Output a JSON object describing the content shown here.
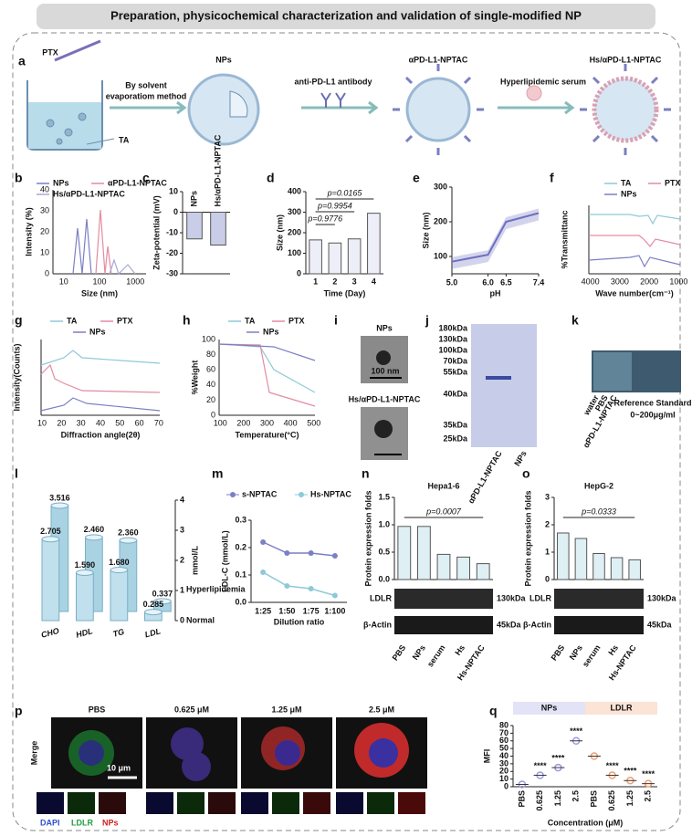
{
  "title": "Preparation, physicochemical characterization and validation of single-modified NP",
  "panel_letters": [
    "a",
    "b",
    "c",
    "d",
    "e",
    "f",
    "g",
    "h",
    "i",
    "j",
    "k",
    "l",
    "m",
    "n",
    "o",
    "p",
    "q"
  ],
  "figure": {
    "a": [
      "PTX",
      "By solvent",
      "evaporatiom method",
      "TA",
      "NPs",
      "anti-PD-L1 antibody",
      "αPD-L1-NPTAC",
      "Hyperlipidemic serum",
      "Hs/αPD-L1-NPTAC"
    ],
    "b": {
      "legend": [
        "NPs",
        "αPD-L1-NPTAC",
        "Hs/αPD-L1-NPTAC"
      ],
      "ylabel": "Intensity (%)",
      "xlabel": "Size (nm)",
      "yticks": [
        "0",
        "10",
        "20",
        "30",
        "40"
      ],
      "xticks": [
        "10",
        "100",
        "1000"
      ]
    },
    "f": {
      "legend": [
        "TA",
        "PTX",
        "NPs"
      ],
      "ylabel": "%Transmittanc",
      "xlabel": "Wave number(cm⁻¹)",
      "xticks": [
        "4000",
        "3000",
        "2000",
        "1000"
      ]
    },
    "g": {
      "legend": [
        "TA",
        "PTX",
        "NPs"
      ],
      "ylabel": "Intensity(Counts)",
      "xlabel": "Diffraction angle(2θ)",
      "xticks": [
        "10",
        "20",
        "30",
        "40",
        "50",
        "60",
        "70"
      ]
    },
    "h": {
      "legend": [
        "TA",
        "PTX",
        "NPs"
      ],
      "ylabel": "%Weight",
      "xlabel": "Temperature(°C)",
      "yticks": [
        "0",
        "20",
        "40",
        "60",
        "80",
        "100"
      ],
      "xticks": [
        "100",
        "200",
        "300",
        "400",
        "500"
      ]
    },
    "i": [
      "NPs",
      "100 nm",
      "Hs/αPD-L1-NPTAC"
    ],
    "j": {
      "markers": [
        "180kDa",
        "130kDa",
        "100kDa",
        "70kDa",
        "55kDa",
        "40kDa",
        "35kDa",
        "25kDa"
      ],
      "lanes": [
        "αPD-L1-NPTAC",
        "NPs"
      ]
    },
    "k": [
      "water",
      "PBS",
      "αPD-L1-NPTAC",
      "Reference Standard",
      "0~200μg/ml"
    ],
    "p": {
      "columns": [
        "PBS",
        "0.625 μM",
        "1.25 μM",
        "2.5 μM"
      ],
      "row": "Merge",
      "scale": "10 μm",
      "channels": [
        "DAPI",
        "LDLR",
        "NPs"
      ]
    }
  },
  "chart_data": [
    {
      "type": "bar",
      "ylabel": "Zeta-potential (mV)",
      "categories": [
        "NPs",
        "Hs/αPD-L1-NPTAC"
      ],
      "values": [
        -13,
        -16
      ],
      "color": "#c9cde8",
      "ylim": [
        -30,
        10
      ],
      "yticks": [
        -30,
        -20,
        -10,
        0,
        10
      ]
    },
    {
      "type": "bar",
      "ylabel": "Size (nm)",
      "xlabel": "Time (Day)",
      "categories": [
        "1",
        "2",
        "3",
        "4"
      ],
      "values": [
        165,
        150,
        170,
        295
      ],
      "color": "#eeeef8",
      "ylim": [
        0,
        400
      ],
      "yticks": [
        0,
        100,
        200,
        300,
        400
      ],
      "annotations": [
        "p=0.9776",
        "p=0.9954",
        "p=0.0165"
      ]
    },
    {
      "type": "line",
      "ylabel": "Size (nm)",
      "xlabel": "pH",
      "x": [
        5.0,
        6.0,
        6.5,
        7.4
      ],
      "values": [
        85,
        105,
        200,
        225
      ],
      "color": "#6e6fc0",
      "xlim": [
        5.0,
        7.4
      ],
      "xticks": [
        {
          "value": 5.0,
          "label": "5.0"
        },
        {
          "value": 6.0,
          "label": "6.0"
        },
        6.5,
        7.4
      ],
      "ylim": [
        50,
        300
      ],
      "yticks": [
        100,
        200,
        300
      ]
    },
    {
      "type": "bar3d",
      "ylabel": "mmol/L",
      "categories": [
        "CHO",
        "HDL",
        "TG",
        "LDL"
      ],
      "series": [
        {
          "name": "Hyperlipidemia",
          "color": "#a9d3e3",
          "values": [
            3.516,
            2.46,
            2.36,
            0.337
          ],
          "value_labels": [
            "3.516",
            "2.460",
            "2.360",
            "0.337"
          ]
        },
        {
          "name": "Normal",
          "color": "#bfe0ec",
          "values": [
            2.705,
            1.59,
            1.68,
            0.285
          ],
          "value_labels": [
            "2.705",
            "1.590",
            "1.680",
            "0.285"
          ]
        }
      ],
      "ylim": [
        0,
        4
      ],
      "yticks": [
        0,
        1,
        2,
        3,
        4
      ]
    },
    {
      "type": "line",
      "ylabel": "LDL-C (mmol/L)",
      "xlabel": "Dilution ratio",
      "categories": [
        "1:25",
        "1:50",
        "1:75",
        "1:100"
      ],
      "series": [
        {
          "name": "s-NPTAC",
          "color": "#7b7fc4",
          "values": [
            0.22,
            0.18,
            0.18,
            0.17
          ]
        },
        {
          "name": "Hs-NPTAC",
          "color": "#8ec9d8",
          "values": [
            0.11,
            0.06,
            0.05,
            0.025
          ]
        }
      ],
      "ylim": [
        0,
        0.3
      ],
      "yticks": [
        {
          "value": 0,
          "label": "0.0"
        },
        0.1,
        0.2,
        0.3
      ]
    },
    {
      "type": "bar",
      "title": "Hepa1-6",
      "ylabel": "Protein expression folds",
      "categories": [
        "PBS",
        "NPs",
        "serum",
        "Hs",
        "Hs-NPTAC"
      ],
      "values": [
        0.97,
        0.97,
        0.46,
        0.41,
        0.29
      ],
      "color": "#dff0f5",
      "ylim": [
        0,
        1.5
      ],
      "yticks": [
        {
          "value": 0,
          "label": "0.0"
        },
        0.5,
        {
          "value": 1,
          "label": "1.0"
        },
        1.5
      ],
      "annotations": [
        "p=0.0007"
      ],
      "blot_labels": [
        "LDLR",
        "β-Actin",
        "130kDa",
        "45kDa"
      ]
    },
    {
      "type": "bar",
      "title": "HepG-2",
      "ylabel": "Protein expression folds",
      "categories": [
        "PBS",
        "NPs",
        "serum",
        "Hs",
        "Hs-NPTAC"
      ],
      "values": [
        1.7,
        1.5,
        0.95,
        0.8,
        0.72
      ],
      "color": "#dff0f5",
      "ylim": [
        0,
        3
      ],
      "yticks": [
        0,
        1,
        2,
        3
      ],
      "annotations": [
        "p=0.0333"
      ],
      "blot_labels": [
        "LDLR",
        "β-Actin",
        "130kDa",
        "45kDa"
      ]
    },
    {
      "type": "scatter",
      "ylabel": "MFI",
      "xlabel": "Concentration (μM)",
      "categories": [
        "PBS",
        "0.625",
        "1.25",
        "2.5",
        "PBS",
        "0.625",
        "1.25",
        "2.5"
      ],
      "series": [
        {
          "name": "NPs",
          "color": "#9a9ae0",
          "values": [
            3,
            15,
            25,
            60,
            null,
            null,
            null,
            null
          ]
        },
        {
          "name": "LDLR",
          "color": "#f0a070",
          "values": [
            null,
            null,
            null,
            null,
            40,
            15,
            8,
            4
          ]
        }
      ],
      "ylim": [
        0,
        80
      ],
      "yticks": [
        0,
        10,
        20,
        30,
        40,
        50,
        60,
        70,
        80
      ],
      "annotations": [
        "****",
        "****",
        "****",
        "****",
        "****",
        "****"
      ]
    }
  ]
}
